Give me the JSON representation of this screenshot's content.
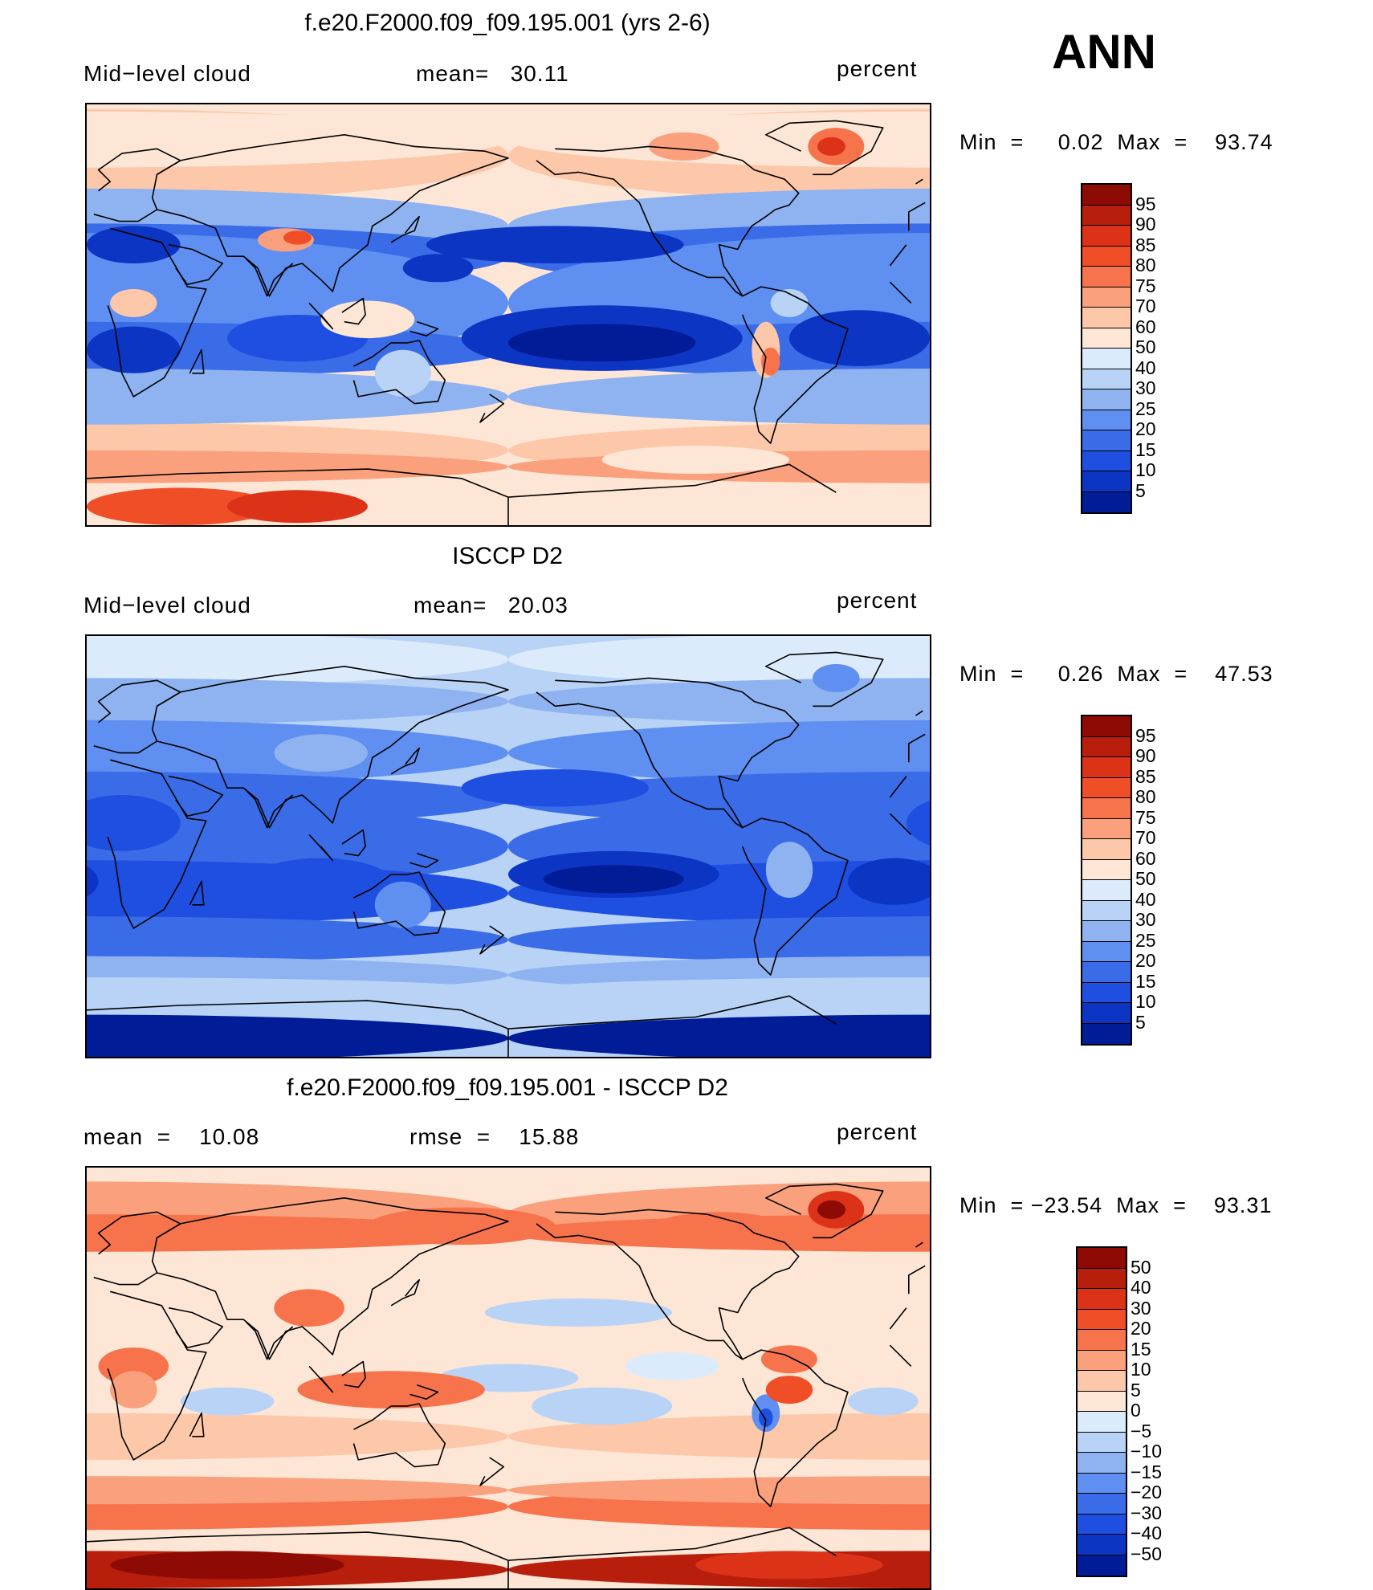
{
  "colors": {
    "warm": [
      "#fde6d6",
      "#fcc8a9",
      "#fba07c",
      "#f7734c",
      "#f04e27",
      "#dc3318",
      "#b71f0c",
      "#8e0b05"
    ],
    "cool": [
      "#dcebfb",
      "#b9d3f7",
      "#8eb3f0",
      "#5f8ff0",
      "#3a6ce8",
      "#1f4fe0",
      "#0c35c4",
      "#001c96"
    ],
    "coast": "#000000"
  },
  "header": {
    "season": "ANN"
  },
  "panels": [
    {
      "title": "f.e20.F2000.f09_f09.195.001 (yrs 2-6)",
      "left_label": "Mid−level cloud",
      "center_label": "mean=   30.11",
      "units": "percent",
      "min_max": "Min  =     0.02  Max  =    93.74",
      "colorbar": [
        "95",
        "90",
        "85",
        "80",
        "75",
        "70",
        "60",
        "50",
        "40",
        "30",
        "25",
        "20",
        "15",
        "10",
        "5"
      ],
      "style": "model"
    },
    {
      "title": "ISCCP D2",
      "left_label": "Mid−level cloud",
      "center_label": "mean=   20.03",
      "units": "percent",
      "min_max": "Min  =     0.26  Max  =    47.53",
      "colorbar": [
        "95",
        "90",
        "85",
        "80",
        "75",
        "70",
        "60",
        "50",
        "40",
        "30",
        "25",
        "20",
        "15",
        "10",
        "5"
      ],
      "style": "obs"
    },
    {
      "title": "f.e20.F2000.f09_f09.195.001 - ISCCP D2",
      "left_label": "mean  =    10.08",
      "center_label": "rmse  =    15.88",
      "units": "percent",
      "min_max": "Min  = −23.54  Max  =    93.31",
      "colorbar": [
        "50",
        "40",
        "30",
        "20",
        "15",
        "10",
        "5",
        "0",
        "−5",
        "−10",
        "−15",
        "−20",
        "−30",
        "−40",
        "−50"
      ],
      "style": "diff"
    }
  ],
  "chart_data": [
    {
      "type": "heatmap",
      "title": "f.e20.F2000.f09_f09.195.001 (yrs 2-6)",
      "variable": "Mid−level cloud",
      "units": "percent",
      "mean": 30.11,
      "min": 0.02,
      "max": 93.74,
      "contour_levels": [
        5,
        10,
        15,
        20,
        25,
        30,
        40,
        50,
        60,
        70,
        75,
        80,
        85,
        90,
        95
      ]
    },
    {
      "type": "heatmap",
      "title": "ISCCP D2",
      "variable": "Mid−level cloud",
      "units": "percent",
      "mean": 20.03,
      "min": 0.26,
      "max": 47.53,
      "contour_levels": [
        5,
        10,
        15,
        20,
        25,
        30,
        40,
        50,
        60,
        70,
        75,
        80,
        85,
        90,
        95
      ]
    },
    {
      "type": "heatmap",
      "title": "f.e20.F2000.f09_f09.195.001 - ISCCP D2",
      "units": "percent",
      "mean": 10.08,
      "rmse": 15.88,
      "min": -23.54,
      "max": 93.31,
      "contour_levels": [
        -50,
        -40,
        -30,
        -20,
        -15,
        -10,
        -5,
        0,
        5,
        10,
        15,
        20,
        30,
        40,
        50
      ]
    }
  ]
}
